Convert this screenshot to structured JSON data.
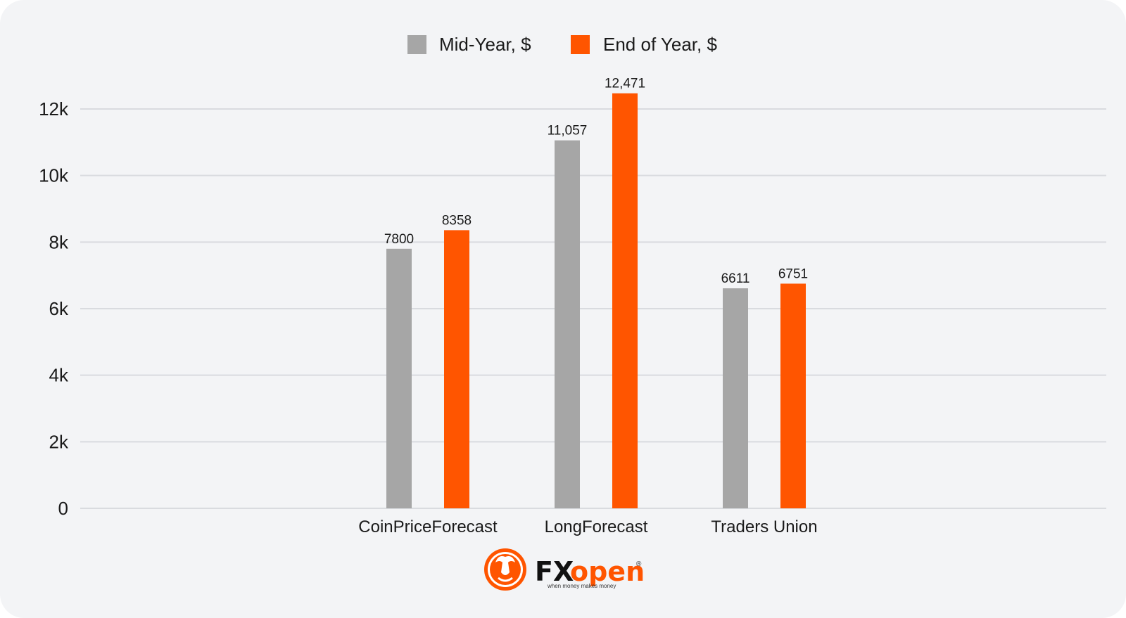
{
  "chart_data": {
    "type": "bar",
    "categories": [
      "CoinPriceForecast",
      "LongForecast",
      "Traders Union"
    ],
    "series": [
      {
        "name": "Mid-Year, $",
        "color": "#a6a6a6",
        "values": [
          7800,
          11057,
          6611
        ],
        "labels": [
          "7800",
          "11,057",
          "6611"
        ]
      },
      {
        "name": "End of Year, $",
        "color": "#ff5500",
        "values": [
          8358,
          12471,
          6751
        ],
        "labels": [
          "8358",
          "12,471",
          "6751"
        ]
      }
    ],
    "ylim": [
      0,
      12000
    ],
    "yticks": [
      0,
      2000,
      4000,
      6000,
      8000,
      10000,
      12000
    ],
    "ytick_labels": [
      "0",
      "2k",
      "4k",
      "6k",
      "8k",
      "10k",
      "12k"
    ],
    "grid": true,
    "legend_position": "top-center",
    "title": "",
    "xlabel": "",
    "ylabel": ""
  },
  "logo": {
    "brand_fx": "FX",
    "brand_open": "open",
    "tagline": "when money makes money",
    "registered": "®",
    "icon": "bull-emblem-icon",
    "accent": "#ff5500"
  }
}
